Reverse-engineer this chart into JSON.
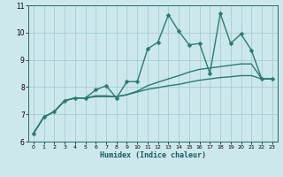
{
  "title": "",
  "xlabel": "Humidex (Indice chaleur)",
  "ylabel": "",
  "xlim": [
    -0.5,
    23.5
  ],
  "ylim": [
    6,
    11
  ],
  "yticks": [
    6,
    7,
    8,
    9,
    10,
    11
  ],
  "xticks": [
    0,
    1,
    2,
    3,
    4,
    5,
    6,
    7,
    8,
    9,
    10,
    11,
    12,
    13,
    14,
    15,
    16,
    17,
    18,
    19,
    20,
    21,
    22,
    23
  ],
  "bg_color": "#cce8ed",
  "grid_color": "#9dc8d0",
  "line_color": "#2a7a72",
  "line_width": 1.0,
  "marker": "D",
  "marker_size": 2.5,
  "series1_x": [
    0,
    1,
    2,
    3,
    4,
    5,
    6,
    7,
    8,
    9,
    10,
    11,
    12,
    13,
    14,
    15,
    16,
    17,
    18,
    19,
    20,
    21,
    22,
    23
  ],
  "series1_y": [
    6.3,
    6.9,
    7.1,
    7.5,
    7.6,
    7.6,
    7.9,
    8.05,
    7.6,
    8.2,
    8.2,
    9.4,
    9.65,
    10.65,
    10.05,
    9.55,
    9.6,
    8.5,
    10.7,
    9.6,
    9.95,
    9.35,
    8.3,
    8.3
  ],
  "series2_x": [
    0,
    1,
    2,
    3,
    4,
    5,
    6,
    7,
    8,
    9,
    10,
    11,
    12,
    13,
    14,
    15,
    16,
    17,
    18,
    19,
    20,
    21,
    22,
    23
  ],
  "series2_y": [
    6.3,
    6.9,
    7.1,
    7.5,
    7.6,
    7.6,
    7.65,
    7.65,
    7.65,
    7.72,
    7.82,
    7.92,
    7.98,
    8.05,
    8.1,
    8.18,
    8.25,
    8.3,
    8.35,
    8.38,
    8.42,
    8.42,
    8.3,
    8.3
  ],
  "series3_x": [
    0,
    1,
    2,
    3,
    4,
    5,
    6,
    7,
    8,
    9,
    10,
    11,
    12,
    13,
    14,
    15,
    16,
    17,
    18,
    19,
    20,
    21,
    22,
    23
  ],
  "series3_y": [
    6.3,
    6.9,
    7.1,
    7.5,
    7.6,
    7.6,
    7.68,
    7.68,
    7.65,
    7.72,
    7.85,
    8.05,
    8.18,
    8.3,
    8.42,
    8.55,
    8.65,
    8.7,
    8.75,
    8.8,
    8.85,
    8.85,
    8.3,
    8.3
  ]
}
